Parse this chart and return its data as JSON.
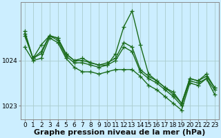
{
  "xlabel": "Graphe pression niveau de la mer (hPa)",
  "background_color": "#cceeff",
  "plot_bg_color": "#cceeff",
  "grid_color": "#aacccc",
  "line_color": "#1a6b1a",
  "hours": [
    0,
    1,
    2,
    3,
    4,
    5,
    6,
    7,
    8,
    9,
    10,
    11,
    12,
    13,
    14,
    15,
    16,
    17,
    18,
    19,
    20,
    21,
    22,
    23
  ],
  "series": [
    [
      1024.55,
      1024.05,
      1024.15,
      1024.55,
      1024.45,
      1024.1,
      1023.95,
      1023.95,
      1023.9,
      1023.85,
      1023.9,
      1024.0,
      1024.3,
      1024.2,
      1023.75,
      1023.6,
      1023.5,
      1023.35,
      1023.2,
      1023.0,
      1023.55,
      1023.5,
      1023.6,
      1023.35
    ],
    [
      1024.3,
      1024.0,
      1024.05,
      1024.5,
      1024.4,
      1024.05,
      1023.85,
      1023.75,
      1023.75,
      1023.7,
      1023.75,
      1023.8,
      1023.8,
      1023.8,
      1023.65,
      1023.45,
      1023.35,
      1023.2,
      1023.05,
      1022.9,
      1023.5,
      1023.45,
      1023.6,
      1023.25
    ],
    [
      1024.6,
      1024.05,
      1024.35,
      1024.55,
      1024.5,
      1024.15,
      1024.0,
      1024.05,
      1023.95,
      1023.9,
      1023.9,
      1024.15,
      1024.75,
      1025.1,
      1024.35,
      1023.7,
      1023.55,
      1023.4,
      1023.3,
      1023.05,
      1023.6,
      1023.55,
      1023.7,
      1023.4
    ],
    [
      1024.65,
      1024.05,
      1024.2,
      1024.55,
      1024.5,
      1024.15,
      1024.0,
      1024.0,
      1023.95,
      1023.9,
      1023.95,
      1024.05,
      1024.4,
      1024.3,
      1023.8,
      1023.65,
      1023.55,
      1023.4,
      1023.25,
      1023.05,
      1023.6,
      1023.55,
      1023.65,
      1023.4
    ]
  ],
  "ylim": [
    1022.7,
    1025.3
  ],
  "yticks": [
    1023,
    1024
  ],
  "xticks": [
    0,
    1,
    2,
    3,
    4,
    5,
    6,
    7,
    8,
    9,
    10,
    11,
    12,
    13,
    14,
    15,
    16,
    17,
    18,
    19,
    20,
    21,
    22,
    23
  ],
  "marker": "+",
  "markersize": 4,
  "linewidth": 1.0,
  "xlabel_fontsize": 8,
  "tick_fontsize": 6.5
}
